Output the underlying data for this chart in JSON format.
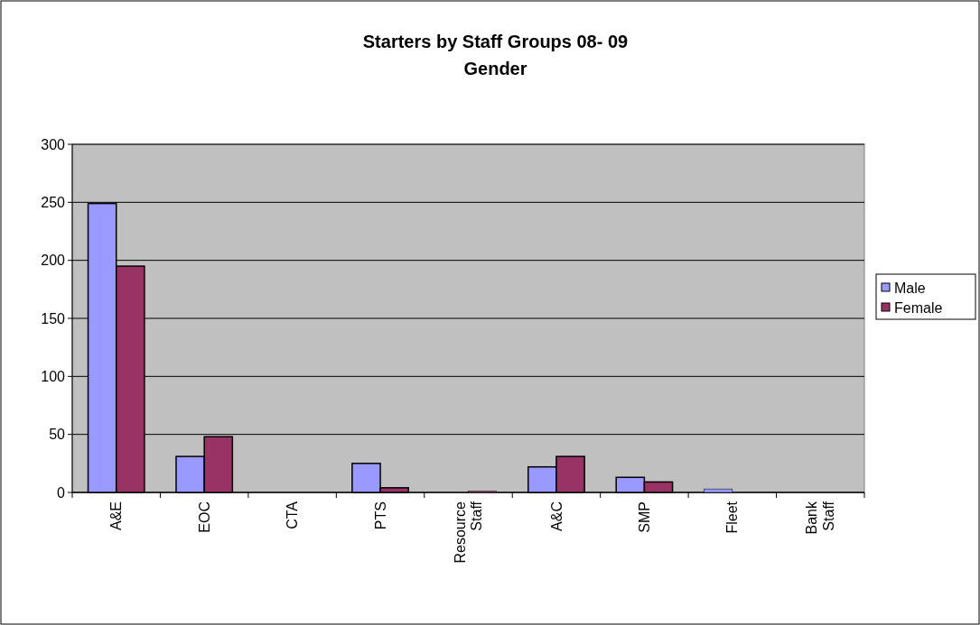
{
  "chart_data": {
    "type": "bar",
    "title": "Starters by Staff Groups 08- 09\nGender",
    "categories": [
      "A&E",
      "EOC",
      "CTA",
      "PTS",
      "Resource Staff",
      "A&C",
      "SMP",
      "Fleet",
      "Bank Staff"
    ],
    "series": [
      {
        "name": "Male",
        "color": "#9999ff",
        "values": [
          249,
          31,
          0,
          25,
          0,
          22,
          13,
          3,
          0
        ]
      },
      {
        "name": "Female",
        "color": "#993366",
        "values": [
          195,
          48,
          0,
          4,
          1,
          31,
          9,
          0,
          0
        ]
      }
    ],
    "ylim": [
      0,
      300
    ],
    "yticks": [
      0,
      50,
      100,
      150,
      200,
      250,
      300
    ],
    "grid": "y",
    "legend": "right"
  }
}
